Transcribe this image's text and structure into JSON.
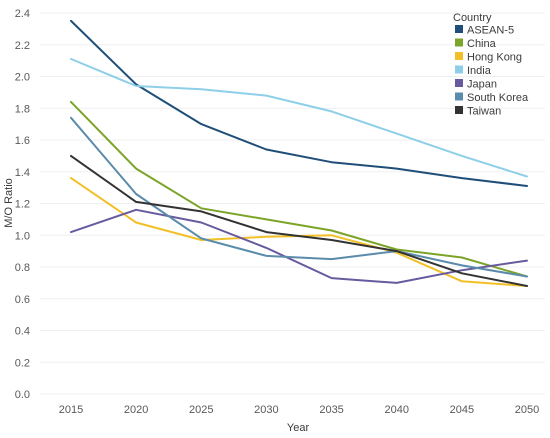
{
  "chart_data": {
    "type": "line",
    "title": "",
    "xlabel": "Year",
    "ylabel": "M/O Ratio",
    "x": [
      2015,
      2020,
      2025,
      2030,
      2035,
      2040,
      2045,
      2050
    ],
    "x_tick_labels": [
      "2015",
      "2020",
      "2025",
      "2030",
      "2035",
      "2040",
      "2045",
      "2050"
    ],
    "y_tick_labels": [
      "0.0",
      "0.2",
      "0.4",
      "0.6",
      "0.8",
      "1.0",
      "1.2",
      "1.4",
      "1.6",
      "1.8",
      "2.0",
      "2.2",
      "2.4"
    ],
    "ylim": [
      0,
      2.4
    ],
    "grid": true,
    "legend": {
      "title": "Country",
      "placement": "top-right"
    },
    "series": [
      {
        "name": "ASEAN-5",
        "color": "#1f4e79",
        "values": [
          2.35,
          1.95,
          1.7,
          1.54,
          1.46,
          1.42,
          1.36,
          1.31
        ]
      },
      {
        "name": "China",
        "color": "#7ba428",
        "values": [
          1.84,
          1.42,
          1.17,
          1.1,
          1.03,
          0.91,
          0.86,
          0.74
        ]
      },
      {
        "name": "Hong Kong",
        "color": "#f2c026",
        "values": [
          1.36,
          1.08,
          0.97,
          0.99,
          1.0,
          0.89,
          0.71,
          0.68
        ]
      },
      {
        "name": "India",
        "color": "#8ecfe8",
        "values": [
          2.11,
          1.94,
          1.92,
          1.88,
          1.78,
          1.64,
          1.5,
          1.37
        ]
      },
      {
        "name": "Japan",
        "color": "#675a9e",
        "values": [
          1.02,
          1.16,
          1.08,
          0.92,
          0.73,
          0.7,
          0.78,
          0.84
        ]
      },
      {
        "name": "South Korea",
        "color": "#5b8bab",
        "values": [
          1.74,
          1.26,
          0.98,
          0.87,
          0.85,
          0.9,
          0.81,
          0.74
        ]
      },
      {
        "name": "Taiwan",
        "color": "#333333",
        "values": [
          1.5,
          1.21,
          1.15,
          1.02,
          0.97,
          0.9,
          0.76,
          0.68
        ]
      }
    ]
  }
}
